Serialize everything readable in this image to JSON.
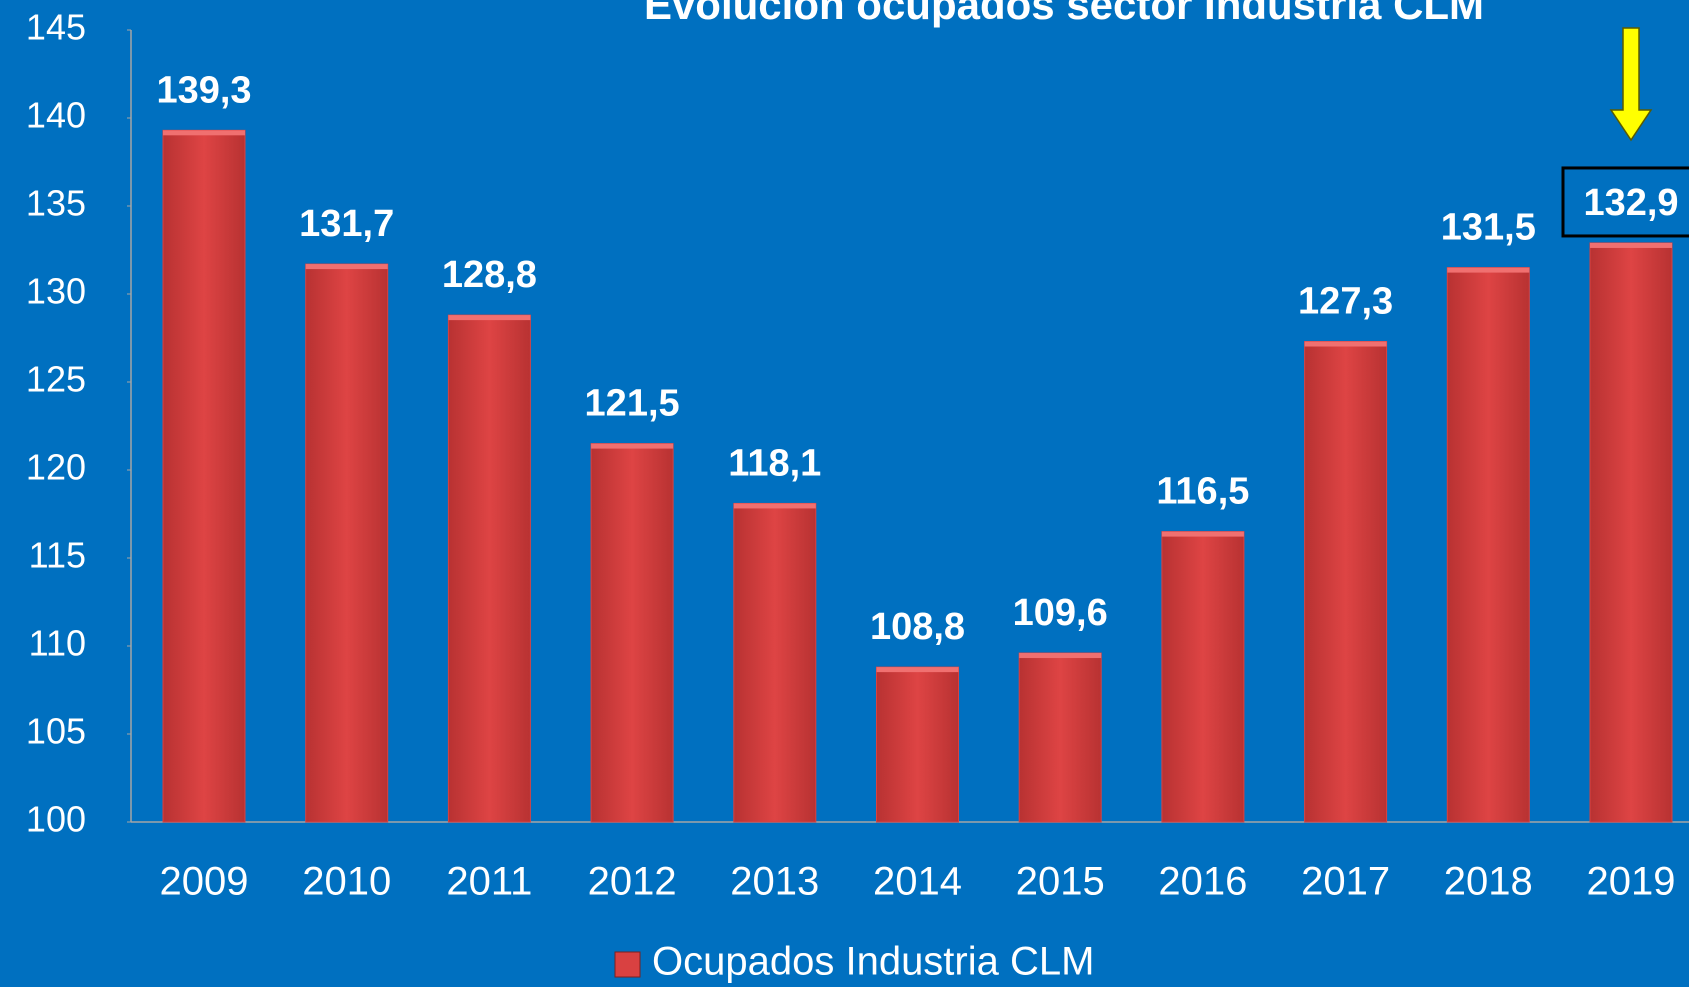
{
  "chart_data": {
    "type": "bar",
    "title": "Evolución ocupados sector Industria CLM",
    "categories": [
      "2009",
      "2010",
      "2011",
      "2012",
      "2013",
      "2014",
      "2015",
      "2016",
      "2017",
      "2018",
      "2019"
    ],
    "series": [
      {
        "name": "Ocupados Industria CLM",
        "color": "#d94141",
        "values": [
          139.3,
          131.7,
          128.8,
          121.5,
          118.1,
          108.8,
          109.6,
          116.5,
          127.3,
          131.5,
          132.9
        ],
        "value_labels": [
          "139,3",
          "131,7",
          "128,8",
          "121,5",
          "118,1",
          "108,8",
          "109,6",
          "116,5",
          "127,3",
          "131,5",
          "132,9"
        ]
      }
    ],
    "ylim": [
      100,
      145
    ],
    "yticks": [
      100,
      105,
      110,
      115,
      120,
      125,
      130,
      135,
      140,
      145
    ],
    "grid": false,
    "legend": "bottom"
  }
}
